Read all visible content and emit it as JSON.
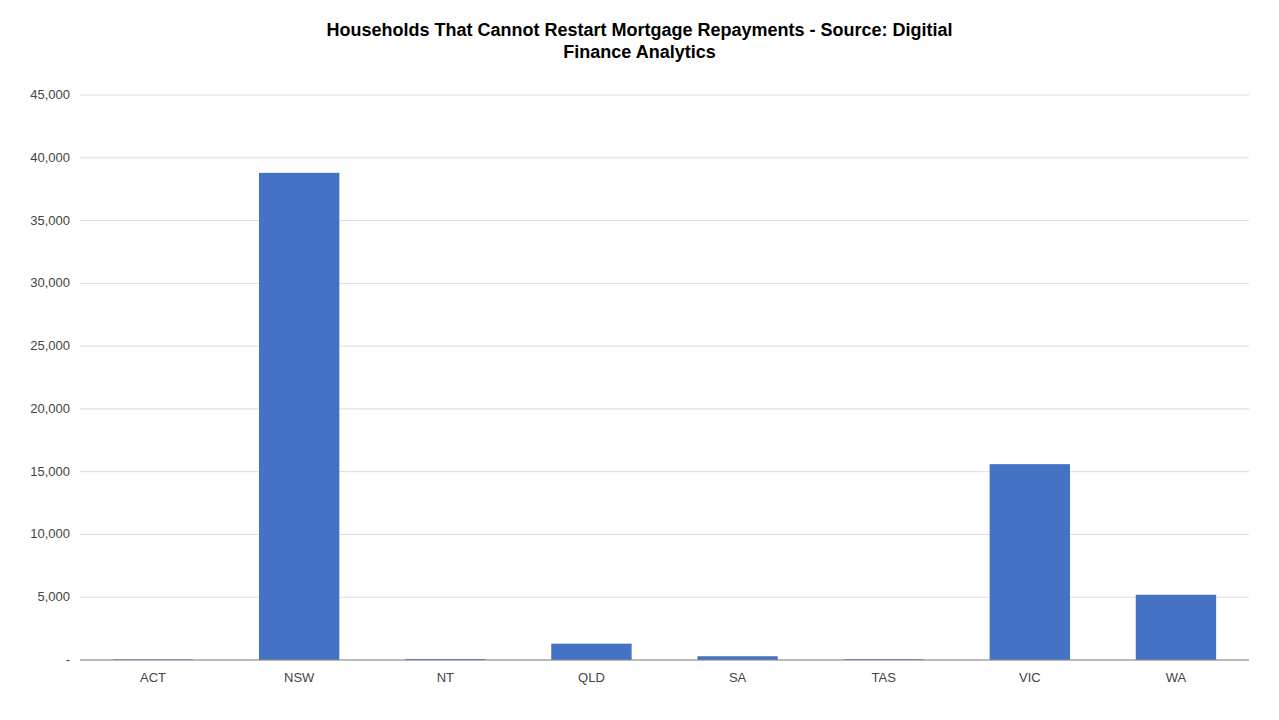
{
  "chart_data": {
    "type": "bar",
    "title": "Households That Cannot Restart Mortgage Repayments - Source: Digitial\nFinance Analytics",
    "categories": [
      "ACT",
      "NSW",
      "NT",
      "QLD",
      "SA",
      "TAS",
      "VIC",
      "WA"
    ],
    "values": [
      50,
      38800,
      80,
      1300,
      300,
      60,
      15600,
      5200
    ],
    "color": "#4472C4",
    "ylim": [
      0,
      45000
    ],
    "yticks": [
      {
        "value": 0,
        "label": "-"
      },
      {
        "value": 5000,
        "label": "5,000"
      },
      {
        "value": 10000,
        "label": "10,000"
      },
      {
        "value": 15000,
        "label": "15,000"
      },
      {
        "value": 20000,
        "label": "20,000"
      },
      {
        "value": 25000,
        "label": "25,000"
      },
      {
        "value": 30000,
        "label": "30,000"
      },
      {
        "value": 35000,
        "label": "35,000"
      },
      {
        "value": 40000,
        "label": "40,000"
      },
      {
        "value": 45000,
        "label": "45,000"
      }
    ],
    "grid": true
  }
}
